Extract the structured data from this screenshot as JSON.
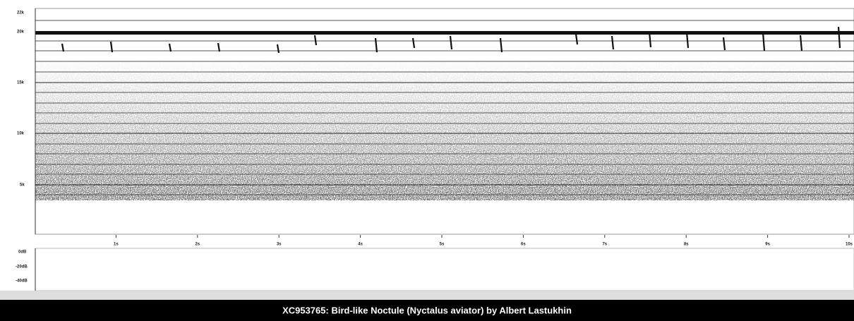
{
  "frequency_axis": {
    "labels": [
      "22k",
      "20k",
      "15k",
      "10k",
      "5k"
    ]
  },
  "time_axis": {
    "labels": [
      "1s",
      "2s",
      "3s",
      "4s",
      "5s",
      "6s",
      "7s",
      "8s",
      "9s",
      "10s"
    ]
  },
  "level_axis": {
    "labels": [
      "0dB",
      "-20dB",
      "-40dB"
    ]
  },
  "caption": "XC953765: Bird-like Noctule (Nyctalus aviator) by Albert Lastukhin"
}
